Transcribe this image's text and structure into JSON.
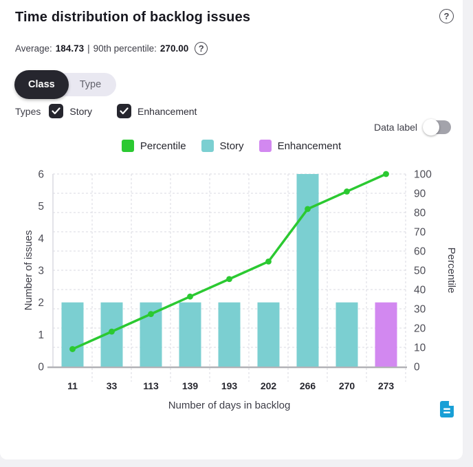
{
  "header": {
    "title": "Time distribution of backlog issues",
    "help_glyph": "?"
  },
  "summary": {
    "average_label": "Average:",
    "average_value": "184.73",
    "separator": "|",
    "percentile_label": "90th percentile:",
    "percentile_value": "270.00",
    "help_glyph": "?"
  },
  "segmented": {
    "options": [
      "Class",
      "Type"
    ],
    "selected": "Class"
  },
  "types_filter": {
    "label": "Types",
    "options": [
      {
        "label": "Story",
        "checked": true
      },
      {
        "label": "Enhancement",
        "checked": true
      }
    ]
  },
  "data_label_toggle": {
    "label": "Data label",
    "state": "off"
  },
  "legend": [
    {
      "label": "Percentile",
      "color": "#2bc931"
    },
    {
      "label": "Story",
      "color": "#7bcfd1"
    },
    {
      "label": "Enhancement",
      "color": "#d288f0"
    }
  ],
  "icons": {
    "header_help": "question-circle",
    "summary_help": "question-circle",
    "export": "document"
  },
  "chart_data": {
    "type": "bar+line combo",
    "categories": [
      "11",
      "33",
      "113",
      "139",
      "193",
      "202",
      "266",
      "270",
      "273"
    ],
    "x_axis": {
      "label": "Number of days in backlog"
    },
    "left_axis": {
      "label": "Number of issues",
      "range": [
        0,
        6
      ],
      "ticks": [
        0,
        1,
        2,
        3,
        4,
        5,
        6
      ]
    },
    "right_axis": {
      "label": "Percentile",
      "range": [
        0,
        100
      ],
      "ticks": [
        0,
        10,
        20,
        30,
        40,
        50,
        60,
        70,
        80,
        90,
        100
      ]
    },
    "grid": "dashed",
    "legend_position": "top-center",
    "series": [
      {
        "name": "Story",
        "type": "bar",
        "axis": "left",
        "color": "#7bcfd1",
        "values": [
          2,
          2,
          2,
          2,
          2,
          2,
          6,
          2,
          null
        ]
      },
      {
        "name": "Enhancement",
        "type": "bar",
        "axis": "left",
        "color": "#d288f0",
        "values": [
          null,
          null,
          null,
          null,
          null,
          null,
          null,
          null,
          2
        ]
      },
      {
        "name": "Percentile",
        "type": "line",
        "axis": "right",
        "color": "#2bc931",
        "values": [
          9.09,
          18.18,
          27.27,
          36.36,
          45.45,
          54.55,
          81.82,
          90.91,
          100
        ]
      }
    ]
  }
}
